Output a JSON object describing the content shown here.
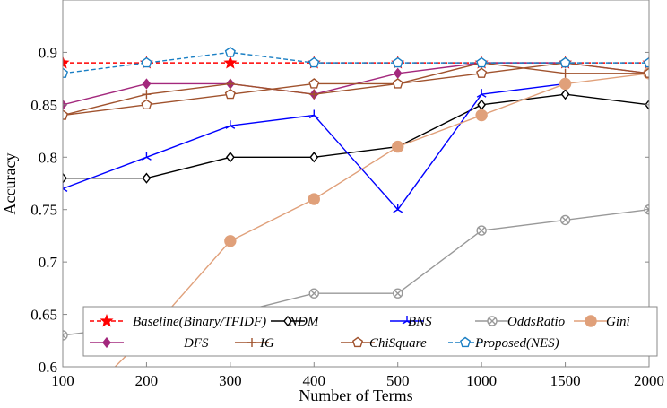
{
  "chart_data": {
    "type": "line",
    "title": "",
    "xlabel": "Number of Terms",
    "ylabel": "Accuracy",
    "categories": [
      "100",
      "200",
      "300",
      "400",
      "500",
      "1000",
      "1500",
      "2000"
    ],
    "ylim": [
      0.6,
      0.95
    ],
    "yticks": [
      "0.6",
      "0.65",
      "0.7",
      "0.75",
      "0.8",
      "0.85",
      "0.9"
    ],
    "grid": false,
    "legend_placement": "bottom",
    "series": [
      {
        "name": "Baseline(Binary/TFIDF)",
        "color": "#ff0000",
        "dash": true,
        "marker": "star",
        "values": [
          0.89,
          0.89,
          0.89,
          0.89,
          0.89,
          0.89,
          0.89,
          0.89
        ]
      },
      {
        "name": "NDM",
        "color": "#000000",
        "dash": false,
        "marker": "diamond",
        "values": [
          0.78,
          0.78,
          0.8,
          0.8,
          0.81,
          0.85,
          0.86,
          0.85
        ]
      },
      {
        "name": "BNS",
        "color": "#0000ff",
        "dash": false,
        "marker": "tri",
        "values": [
          0.77,
          0.8,
          0.83,
          0.84,
          0.75,
          0.86,
          0.87,
          null
        ]
      },
      {
        "name": "OddsRatio",
        "color": "#999999",
        "dash": false,
        "marker": "otimes",
        "values": [
          0.63,
          0.64,
          0.65,
          0.67,
          0.67,
          0.73,
          0.74,
          0.75
        ]
      },
      {
        "name": "Gini",
        "color": "#e0a07a",
        "dash": false,
        "marker": "dot",
        "values": [
          0.55,
          0.63,
          0.72,
          0.76,
          0.81,
          0.84,
          0.87,
          0.88
        ]
      },
      {
        "name": "DFS",
        "color": "#a3287d",
        "dash": false,
        "marker": "diamondfill",
        "values": [
          0.85,
          0.87,
          0.87,
          0.86,
          0.88,
          0.89,
          0.89,
          0.88
        ]
      },
      {
        "name": "IG",
        "color": "#a0522d",
        "dash": false,
        "marker": "plus",
        "values": [
          0.84,
          0.86,
          0.87,
          0.86,
          0.87,
          0.89,
          0.88,
          0.88
        ]
      },
      {
        "name": "ChiSquare",
        "color": "#a0522d",
        "dash": false,
        "marker": "pentagon",
        "values": [
          0.84,
          0.85,
          0.86,
          0.87,
          0.87,
          0.88,
          0.89,
          0.88
        ]
      },
      {
        "name": "Proposed(NES)",
        "color": "#1a7fc4",
        "dash": true,
        "marker": "pentagon",
        "values": [
          0.88,
          0.89,
          0.9,
          0.89,
          0.89,
          0.89,
          0.89,
          0.89
        ]
      }
    ]
  }
}
